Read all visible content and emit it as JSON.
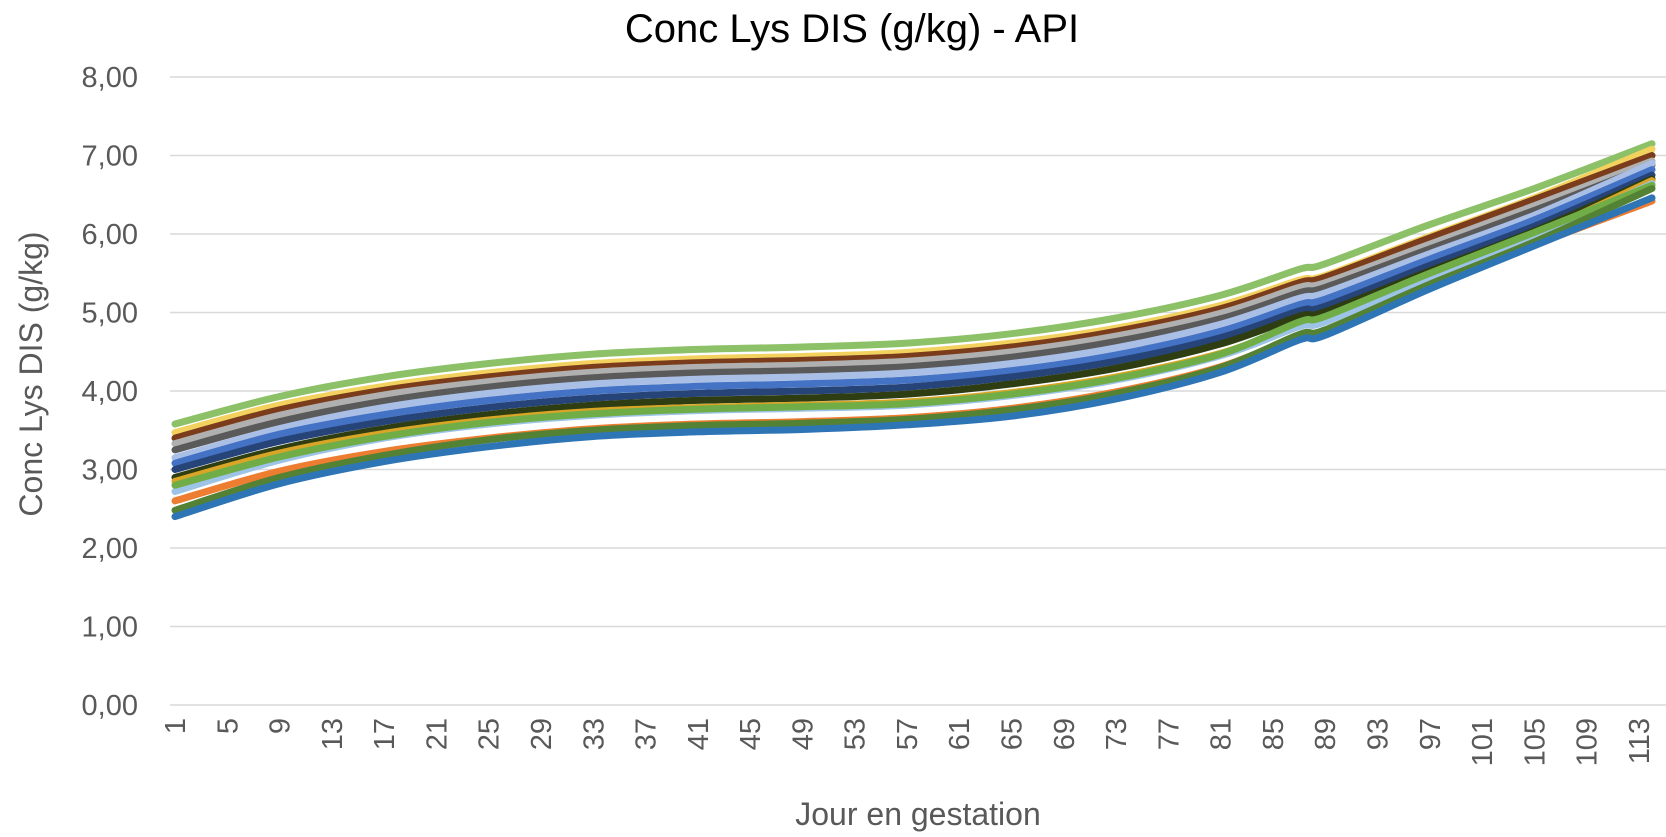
{
  "chart_data": {
    "type": "line",
    "title": "Conc Lys DIS (g/kg) - API",
    "xlabel": "Jour en gestation",
    "ylabel": "Conc Lys DIS (g/kg)",
    "ylim": [
      0,
      8
    ],
    "yticks": [
      "0,00",
      "1,00",
      "2,00",
      "3,00",
      "4,00",
      "5,00",
      "6,00",
      "7,00",
      "8,00"
    ],
    "xlim": [
      1,
      114
    ],
    "xticks": [
      "1",
      "5",
      "9",
      "13",
      "17",
      "21",
      "25",
      "29",
      "33",
      "37",
      "41",
      "45",
      "49",
      "53",
      "57",
      "61",
      "65",
      "69",
      "73",
      "77",
      "81",
      "85",
      "89",
      "93",
      "97",
      "101",
      "105",
      "109",
      "113"
    ],
    "grid": true,
    "legend": "none",
    "series": [
      {
        "color": "#8cc168",
        "values": [
          [
            1,
            3.58
          ],
          [
            9,
            3.93
          ],
          [
            17,
            4.18
          ],
          [
            25,
            4.35
          ],
          [
            33,
            4.47
          ],
          [
            41,
            4.53
          ],
          [
            49,
            4.56
          ],
          [
            57,
            4.61
          ],
          [
            65,
            4.73
          ],
          [
            73,
            4.93
          ],
          [
            81,
            5.22
          ],
          [
            87,
            5.55
          ],
          [
            89,
            5.62
          ],
          [
            97,
            6.12
          ],
          [
            105,
            6.58
          ],
          [
            114,
            7.15
          ]
        ]
      },
      {
        "color": "#f2d15e",
        "values": [
          [
            1,
            3.47
          ],
          [
            9,
            3.82
          ],
          [
            17,
            4.06
          ],
          [
            25,
            4.23
          ],
          [
            33,
            4.35
          ],
          [
            41,
            4.41
          ],
          [
            49,
            4.44
          ],
          [
            57,
            4.49
          ],
          [
            65,
            4.61
          ],
          [
            73,
            4.8
          ],
          [
            81,
            5.09
          ],
          [
            87,
            5.41
          ],
          [
            89,
            5.47
          ],
          [
            97,
            5.97
          ],
          [
            105,
            6.46
          ],
          [
            114,
            7.08
          ]
        ]
      },
      {
        "color": "#7a3c1a",
        "values": [
          [
            1,
            3.4
          ],
          [
            9,
            3.76
          ],
          [
            17,
            4.01
          ],
          [
            25,
            4.18
          ],
          [
            33,
            4.3
          ],
          [
            41,
            4.36
          ],
          [
            49,
            4.39
          ],
          [
            57,
            4.44
          ],
          [
            65,
            4.56
          ],
          [
            73,
            4.76
          ],
          [
            81,
            5.05
          ],
          [
            87,
            5.38
          ],
          [
            89,
            5.45
          ],
          [
            97,
            5.95
          ],
          [
            105,
            6.44
          ],
          [
            114,
            7.0
          ]
        ]
      },
      {
        "color": "#b0b0b0",
        "values": [
          [
            1,
            3.33
          ],
          [
            9,
            3.69
          ],
          [
            17,
            3.95
          ],
          [
            25,
            4.12
          ],
          [
            33,
            4.24
          ],
          [
            41,
            4.3
          ],
          [
            49,
            4.33
          ],
          [
            57,
            4.38
          ],
          [
            65,
            4.5
          ],
          [
            73,
            4.7
          ],
          [
            81,
            4.99
          ],
          [
            87,
            5.32
          ],
          [
            89,
            5.38
          ],
          [
            97,
            5.87
          ],
          [
            105,
            6.36
          ],
          [
            114,
            6.93
          ]
        ]
      },
      {
        "color": "#5a5a5a",
        "values": [
          [
            1,
            3.25
          ],
          [
            9,
            3.61
          ],
          [
            17,
            3.87
          ],
          [
            25,
            4.05
          ],
          [
            33,
            4.17
          ],
          [
            41,
            4.23
          ],
          [
            49,
            4.26
          ],
          [
            57,
            4.31
          ],
          [
            65,
            4.43
          ],
          [
            73,
            4.63
          ],
          [
            81,
            4.92
          ],
          [
            87,
            5.25
          ],
          [
            89,
            5.32
          ],
          [
            97,
            5.81
          ],
          [
            105,
            6.3
          ],
          [
            114,
            6.88
          ]
        ]
      },
      {
        "color": "#a9bfe5",
        "values": [
          [
            1,
            3.15
          ],
          [
            9,
            3.52
          ],
          [
            17,
            3.79
          ],
          [
            25,
            3.97
          ],
          [
            33,
            4.09
          ],
          [
            41,
            4.15
          ],
          [
            49,
            4.18
          ],
          [
            57,
            4.23
          ],
          [
            65,
            4.35
          ],
          [
            73,
            4.55
          ],
          [
            81,
            4.85
          ],
          [
            87,
            5.18
          ],
          [
            89,
            5.25
          ],
          [
            97,
            5.75
          ],
          [
            105,
            6.24
          ],
          [
            114,
            6.9
          ]
        ]
      },
      {
        "color": "#4472c4",
        "values": [
          [
            1,
            3.08
          ],
          [
            9,
            3.45
          ],
          [
            17,
            3.7
          ],
          [
            25,
            3.88
          ],
          [
            33,
            4.0
          ],
          [
            41,
            4.06
          ],
          [
            49,
            4.09
          ],
          [
            57,
            4.14
          ],
          [
            65,
            4.26
          ],
          [
            73,
            4.46
          ],
          [
            81,
            4.76
          ],
          [
            87,
            5.1
          ],
          [
            89,
            5.17
          ],
          [
            97,
            5.68
          ],
          [
            105,
            6.18
          ],
          [
            114,
            6.82
          ]
        ]
      },
      {
        "color": "#264478",
        "values": [
          [
            1,
            3.0
          ],
          [
            9,
            3.36
          ],
          [
            17,
            3.61
          ],
          [
            25,
            3.79
          ],
          [
            33,
            3.91
          ],
          [
            41,
            3.97
          ],
          [
            49,
            4.0
          ],
          [
            57,
            4.05
          ],
          [
            65,
            4.18
          ],
          [
            73,
            4.38
          ],
          [
            81,
            4.68
          ],
          [
            87,
            5.02
          ],
          [
            89,
            5.08
          ],
          [
            97,
            5.6
          ],
          [
            105,
            6.1
          ],
          [
            114,
            6.75
          ]
        ]
      },
      {
        "color": "#2e3d12",
        "values": [
          [
            1,
            2.9
          ],
          [
            9,
            3.26
          ],
          [
            17,
            3.52
          ],
          [
            25,
            3.7
          ],
          [
            33,
            3.82
          ],
          [
            41,
            3.88
          ],
          [
            49,
            3.91
          ],
          [
            57,
            3.96
          ],
          [
            65,
            4.09
          ],
          [
            73,
            4.29
          ],
          [
            81,
            4.6
          ],
          [
            87,
            4.95
          ],
          [
            89,
            5.01
          ],
          [
            97,
            5.53
          ],
          [
            105,
            6.04
          ],
          [
            114,
            6.7
          ]
        ]
      },
      {
        "color": "#d8a527",
        "values": [
          [
            1,
            2.85
          ],
          [
            9,
            3.21
          ],
          [
            17,
            3.46
          ],
          [
            25,
            3.63
          ],
          [
            33,
            3.74
          ],
          [
            41,
            3.79
          ],
          [
            49,
            3.82
          ],
          [
            57,
            3.86
          ],
          [
            65,
            3.98
          ],
          [
            73,
            4.18
          ],
          [
            81,
            4.48
          ],
          [
            87,
            4.84
          ],
          [
            89,
            4.9
          ],
          [
            97,
            5.46
          ],
          [
            105,
            5.99
          ],
          [
            114,
            6.68
          ]
        ]
      },
      {
        "color": "#9dc3e6",
        "values": [
          [
            1,
            2.72
          ],
          [
            9,
            3.12
          ],
          [
            17,
            3.4
          ],
          [
            25,
            3.58
          ],
          [
            33,
            3.69
          ],
          [
            41,
            3.75
          ],
          [
            49,
            3.78
          ],
          [
            57,
            3.82
          ],
          [
            65,
            3.94
          ],
          [
            73,
            4.14
          ],
          [
            81,
            4.45
          ],
          [
            87,
            4.82
          ],
          [
            89,
            4.88
          ],
          [
            97,
            5.44
          ],
          [
            105,
            5.97
          ],
          [
            114,
            6.64
          ]
        ]
      },
      {
        "color": "#70ad47",
        "values": [
          [
            1,
            2.8
          ],
          [
            9,
            3.16
          ],
          [
            17,
            3.42
          ],
          [
            25,
            3.6
          ],
          [
            33,
            3.71
          ],
          [
            41,
            3.77
          ],
          [
            49,
            3.8
          ],
          [
            57,
            3.84
          ],
          [
            65,
            3.96
          ],
          [
            73,
            4.16
          ],
          [
            81,
            4.47
          ],
          [
            87,
            4.88
          ],
          [
            89,
            4.95
          ],
          [
            97,
            5.5
          ],
          [
            105,
            6.02
          ],
          [
            114,
            6.62
          ]
        ]
      },
      {
        "color": "#ed7d31",
        "values": [
          [
            1,
            2.6
          ],
          [
            9,
            2.98
          ],
          [
            17,
            3.23
          ],
          [
            25,
            3.4
          ],
          [
            33,
            3.52
          ],
          [
            41,
            3.58
          ],
          [
            49,
            3.61
          ],
          [
            57,
            3.66
          ],
          [
            65,
            3.78
          ],
          [
            73,
            3.99
          ],
          [
            81,
            4.31
          ],
          [
            87,
            4.7
          ],
          [
            89,
            4.76
          ],
          [
            97,
            5.33
          ],
          [
            105,
            5.86
          ],
          [
            114,
            6.42
          ]
        ]
      },
      {
        "color": "#548235",
        "values": [
          [
            1,
            2.48
          ],
          [
            9,
            2.9
          ],
          [
            17,
            3.18
          ],
          [
            25,
            3.38
          ],
          [
            33,
            3.5
          ],
          [
            41,
            3.56
          ],
          [
            49,
            3.59
          ],
          [
            57,
            3.64
          ],
          [
            65,
            3.76
          ],
          [
            73,
            3.97
          ],
          [
            81,
            4.3
          ],
          [
            87,
            4.72
          ],
          [
            89,
            4.78
          ],
          [
            97,
            5.36
          ],
          [
            105,
            5.9
          ],
          [
            114,
            6.58
          ]
        ]
      },
      {
        "color": "#2e75b6",
        "values": [
          [
            1,
            2.4
          ],
          [
            9,
            2.82
          ],
          [
            17,
            3.1
          ],
          [
            25,
            3.29
          ],
          [
            33,
            3.42
          ],
          [
            41,
            3.48
          ],
          [
            49,
            3.51
          ],
          [
            57,
            3.57
          ],
          [
            65,
            3.68
          ],
          [
            73,
            3.9
          ],
          [
            81,
            4.24
          ],
          [
            87,
            4.65
          ],
          [
            89,
            4.71
          ],
          [
            97,
            5.3
          ],
          [
            105,
            5.85
          ],
          [
            114,
            6.46
          ]
        ]
      }
    ]
  }
}
